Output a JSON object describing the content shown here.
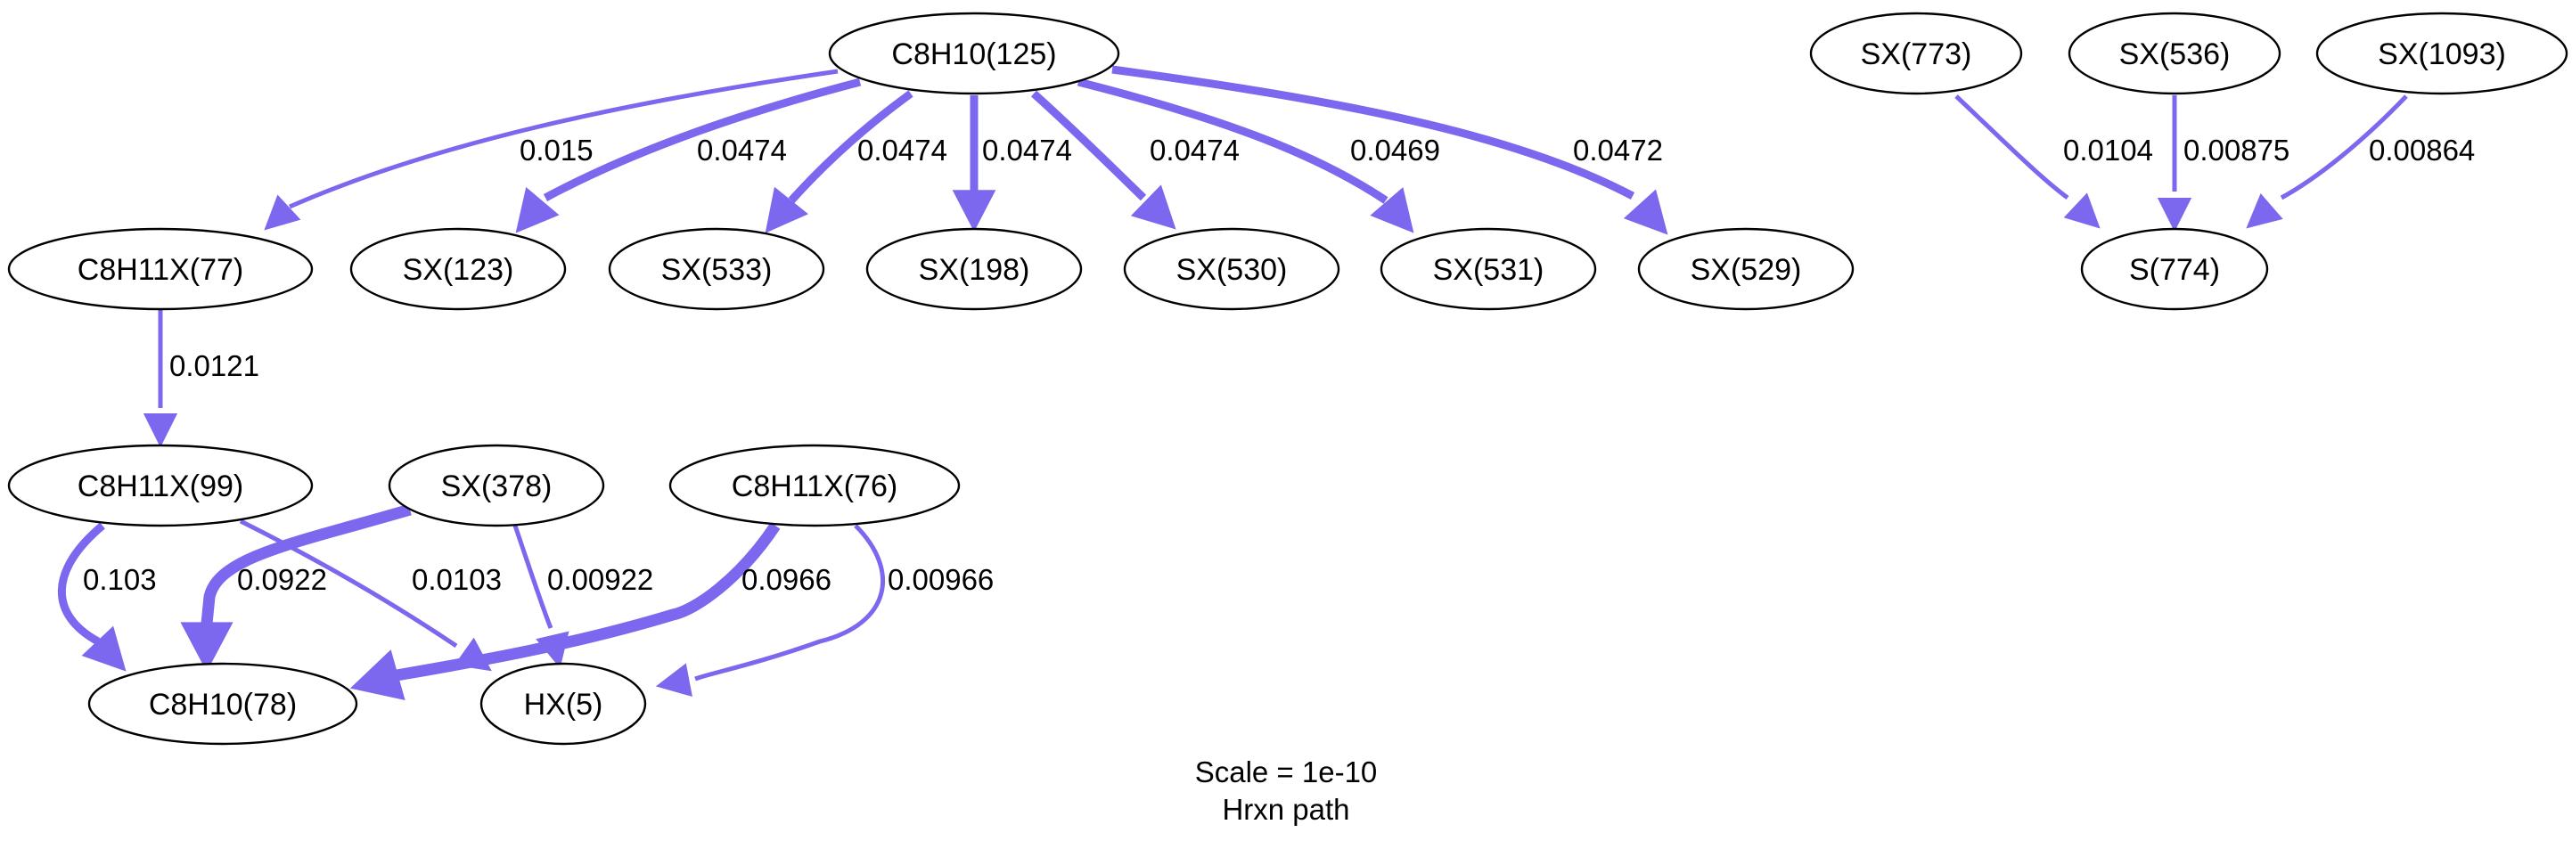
{
  "diagram": {
    "edge_color": "#7b68ee",
    "nodes": [
      {
        "id": "n125",
        "label": "C8H10(125)"
      },
      {
        "id": "n773",
        "label": "SX(773)"
      },
      {
        "id": "n536",
        "label": "SX(536)"
      },
      {
        "id": "n1093",
        "label": "SX(1093)"
      },
      {
        "id": "n77",
        "label": "C8H11X(77)"
      },
      {
        "id": "n123",
        "label": "SX(123)"
      },
      {
        "id": "n533",
        "label": "SX(533)"
      },
      {
        "id": "n198",
        "label": "SX(198)"
      },
      {
        "id": "n530",
        "label": "SX(530)"
      },
      {
        "id": "n531",
        "label": "SX(531)"
      },
      {
        "id": "n529",
        "label": "SX(529)"
      },
      {
        "id": "n774",
        "label": "S(774)"
      },
      {
        "id": "n99",
        "label": "C8H11X(99)"
      },
      {
        "id": "n378",
        "label": "SX(378)"
      },
      {
        "id": "n76",
        "label": "C8H11X(76)"
      },
      {
        "id": "n78",
        "label": "C8H10(78)"
      },
      {
        "id": "n5",
        "label": "HX(5)"
      }
    ],
    "edges": [
      {
        "id": "e1",
        "from": "n125",
        "to": "n77",
        "label": "0.015"
      },
      {
        "id": "e2",
        "from": "n125",
        "to": "n123",
        "label": "0.0474"
      },
      {
        "id": "e3",
        "from": "n125",
        "to": "n533",
        "label": "0.0474"
      },
      {
        "id": "e4",
        "from": "n125",
        "to": "n198",
        "label": "0.0474"
      },
      {
        "id": "e5",
        "from": "n125",
        "to": "n530",
        "label": "0.0474"
      },
      {
        "id": "e6",
        "from": "n125",
        "to": "n531",
        "label": "0.0469"
      },
      {
        "id": "e7",
        "from": "n125",
        "to": "n529",
        "label": "0.0472"
      },
      {
        "id": "e8",
        "from": "n773",
        "to": "n774",
        "label": "0.0104"
      },
      {
        "id": "e9",
        "from": "n536",
        "to": "n774",
        "label": "0.00875"
      },
      {
        "id": "e10",
        "from": "n1093",
        "to": "n774",
        "label": "0.00864"
      },
      {
        "id": "e11",
        "from": "n77",
        "to": "n99",
        "label": "0.0121"
      },
      {
        "id": "e12",
        "from": "n99",
        "to": "n78",
        "label": "0.103"
      },
      {
        "id": "e13",
        "from": "n99",
        "to": "n5",
        "label": "0.0103"
      },
      {
        "id": "e14",
        "from": "n378",
        "to": "n78",
        "label": "0.0922"
      },
      {
        "id": "e15",
        "from": "n378",
        "to": "n5",
        "label": "0.00922"
      },
      {
        "id": "e16",
        "from": "n76",
        "to": "n78",
        "label": "0.0966"
      },
      {
        "id": "e17",
        "from": "n76",
        "to": "n5",
        "label": "0.00966"
      }
    ],
    "caption_line1": "Scale = 1e-10",
    "caption_line2": "Hrxn path"
  }
}
